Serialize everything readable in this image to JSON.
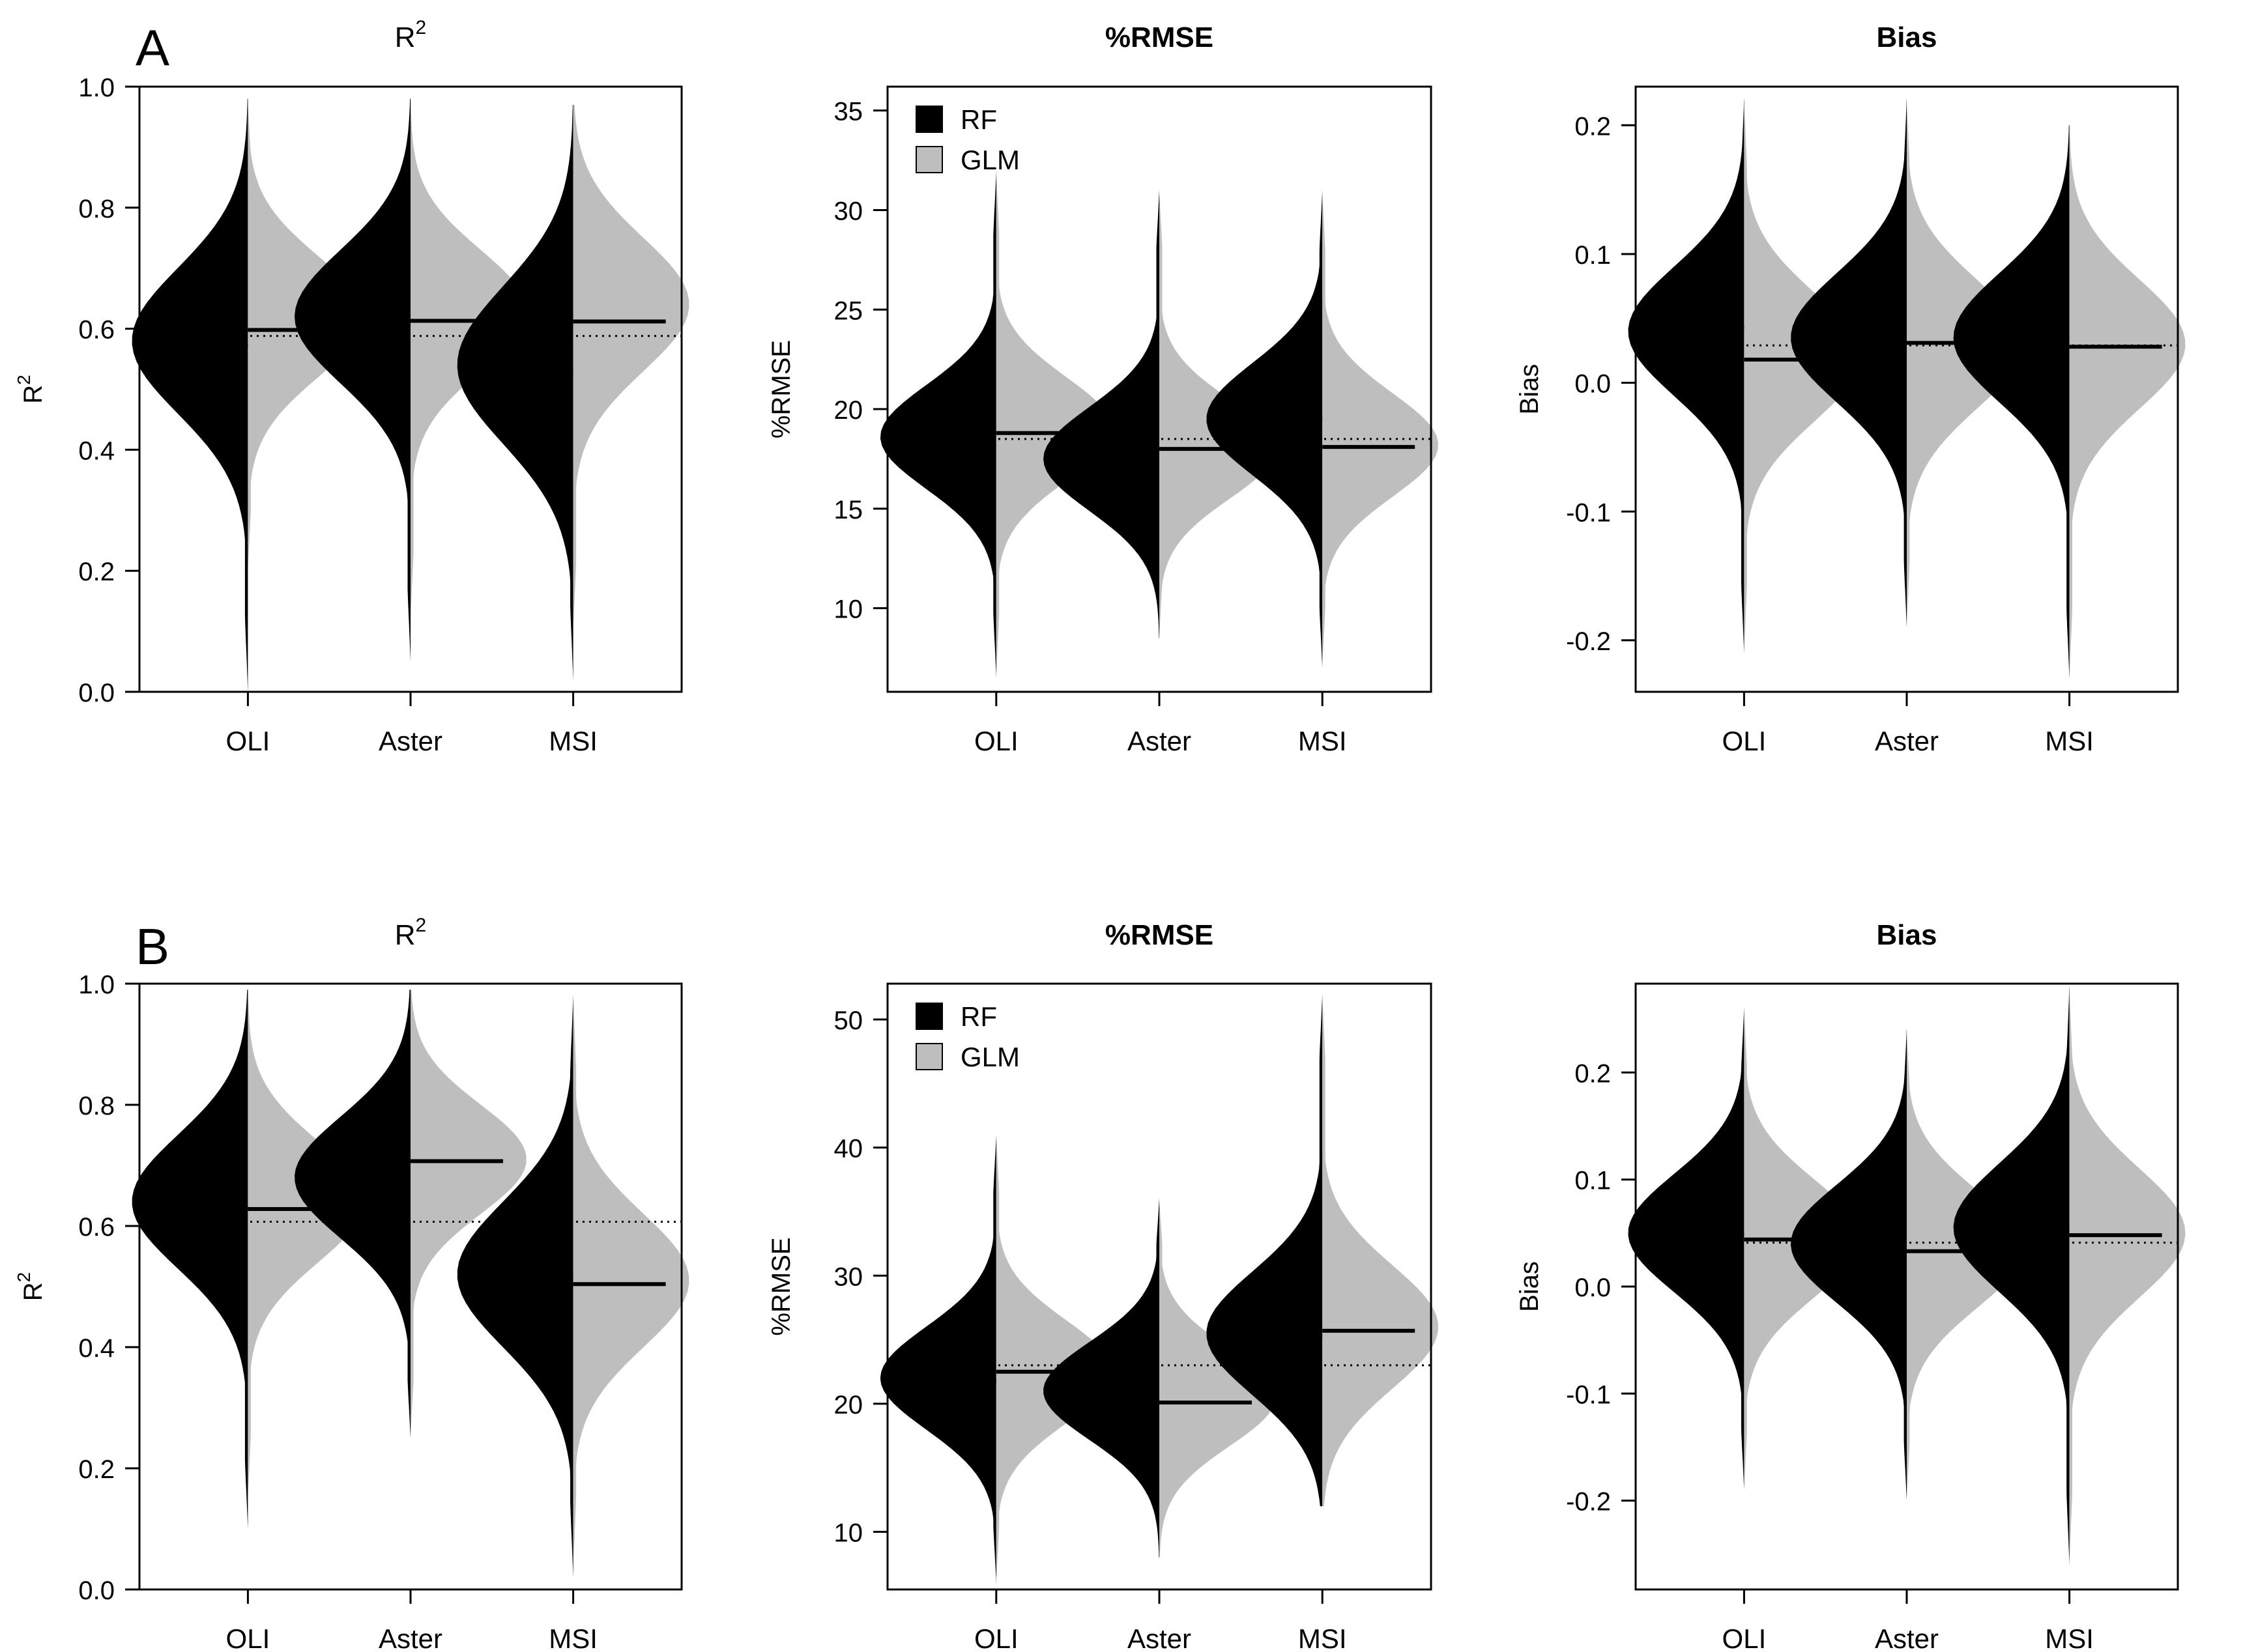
{
  "figure": {
    "rows": [
      {
        "label": "A"
      },
      {
        "label": "B"
      }
    ]
  },
  "legend": {
    "entries": [
      {
        "name": "RF",
        "color": "#000000"
      },
      {
        "name": "GLM",
        "color": "#bebebe"
      }
    ]
  },
  "colors": {
    "rf": "#000000",
    "glm": "#bebebe"
  },
  "chart_data": [
    {
      "type": "violin-split",
      "row": "A",
      "metric": "R2",
      "title": "R",
      "title_superscript": "2",
      "title_bold": false,
      "ylabel": "R",
      "ylabel_superscript": "2",
      "categories": [
        "OLI",
        "Aster",
        "MSI"
      ],
      "ylim": [
        0,
        1
      ],
      "yticks": [
        0.0,
        0.2,
        0.4,
        0.6,
        0.8,
        1.0
      ],
      "tick_decimals": 1,
      "reference_line": 0.588,
      "legend": false,
      "series": [
        {
          "name": "RF",
          "means": [
            0.572,
            0.622,
            0.527
          ],
          "dist": [
            {
              "min": 0.0,
              "max": 0.98,
              "mode": 0.58,
              "sd": 0.12
            },
            {
              "min": 0.05,
              "max": 0.98,
              "mode": 0.62,
              "sd": 0.11
            },
            {
              "min": 0.02,
              "max": 0.97,
              "mode": 0.54,
              "sd": 0.13
            }
          ]
        },
        {
          "name": "GLM",
          "means": [
            0.598,
            0.613,
            0.612
          ],
          "dist": [
            {
              "min": 0.2,
              "max": 0.98,
              "mode": 0.62,
              "sd": 0.1
            },
            {
              "min": 0.12,
              "max": 0.98,
              "mode": 0.63,
              "sd": 0.1
            },
            {
              "min": 0.1,
              "max": 0.97,
              "mode": 0.64,
              "sd": 0.11
            }
          ]
        }
      ]
    },
    {
      "type": "violin-split",
      "row": "A",
      "metric": "%RMSE",
      "title": "%RMSE",
      "title_bold": true,
      "ylabel": "%RMSE",
      "categories": [
        "OLI",
        "Aster",
        "MSI"
      ],
      "ylim": [
        5.8,
        36.2
      ],
      "yticks": [
        10,
        15,
        20,
        25,
        30,
        35
      ],
      "tick_decimals": 0,
      "reference_line": 18.5,
      "legend": true,
      "series": [
        {
          "name": "RF",
          "means": [
            18.8,
            17.4,
            19.5
          ],
          "dist": [
            {
              "min": 6.5,
              "max": 32,
              "mode": 18.6,
              "sd": 2.6
            },
            {
              "min": 8.5,
              "max": 31,
              "mode": 17.5,
              "sd": 2.6
            },
            {
              "min": 7.0,
              "max": 31,
              "mode": 19.5,
              "sd": 2.8
            }
          ]
        },
        {
          "name": "GLM",
          "means": [
            18.8,
            18.0,
            18.1
          ],
          "dist": [
            {
              "min": 6.5,
              "max": 32,
              "mode": 19.0,
              "sd": 2.6
            },
            {
              "min": 8.5,
              "max": 31,
              "mode": 18.0,
              "sd": 2.5
            },
            {
              "min": 7.0,
              "max": 31,
              "mode": 18.2,
              "sd": 2.6
            }
          ]
        }
      ]
    },
    {
      "type": "violin-split",
      "row": "A",
      "metric": "Bias",
      "title": "Bias",
      "title_bold": true,
      "ylabel": "Bias",
      "categories": [
        "OLI",
        "Aster",
        "MSI"
      ],
      "ylim": [
        -0.24,
        0.23
      ],
      "yticks": [
        -0.2,
        -0.1,
        0.0,
        0.1,
        0.2
      ],
      "tick_decimals": 1,
      "reference_line": 0.029,
      "legend": false,
      "series": [
        {
          "name": "RF",
          "means": [
            0.043,
            0.031,
            0.036
          ],
          "dist": [
            {
              "min": -0.21,
              "max": 0.22,
              "mode": 0.04,
              "sd": 0.05
            },
            {
              "min": -0.19,
              "max": 0.22,
              "mode": 0.035,
              "sd": 0.05
            },
            {
              "min": -0.23,
              "max": 0.2,
              "mode": 0.035,
              "sd": 0.05
            }
          ]
        },
        {
          "name": "GLM",
          "means": [
            0.018,
            0.031,
            0.028
          ],
          "dist": [
            {
              "min": -0.21,
              "max": 0.22,
              "mode": 0.02,
              "sd": 0.05
            },
            {
              "min": -0.19,
              "max": 0.22,
              "mode": 0.03,
              "sd": 0.05
            },
            {
              "min": -0.23,
              "max": 0.2,
              "mode": 0.03,
              "sd": 0.05
            }
          ]
        }
      ]
    },
    {
      "type": "violin-split",
      "row": "B",
      "metric": "R2",
      "title": "R",
      "title_superscript": "2",
      "title_bold": false,
      "ylabel": "R",
      "ylabel_superscript": "2",
      "categories": [
        "OLI",
        "Aster",
        "MSI"
      ],
      "ylim": [
        0,
        1
      ],
      "yticks": [
        0.0,
        0.2,
        0.4,
        0.6,
        0.8,
        1.0
      ],
      "tick_decimals": 1,
      "reference_line": 0.607,
      "legend": false,
      "series": [
        {
          "name": "RF",
          "means": [
            0.63,
            0.675,
            0.515
          ],
          "dist": [
            {
              "min": 0.1,
              "max": 0.99,
              "mode": 0.64,
              "sd": 0.11
            },
            {
              "min": 0.25,
              "max": 0.99,
              "mode": 0.68,
              "sd": 0.1
            },
            {
              "min": 0.02,
              "max": 0.98,
              "mode": 0.52,
              "sd": 0.12
            }
          ]
        },
        {
          "name": "GLM",
          "means": [
            0.628,
            0.707,
            0.504
          ],
          "dist": [
            {
              "min": 0.15,
              "max": 0.99,
              "mode": 0.64,
              "sd": 0.1
            },
            {
              "min": 0.25,
              "max": 0.99,
              "mode": 0.71,
              "sd": 0.09
            },
            {
              "min": 0.03,
              "max": 0.98,
              "mode": 0.51,
              "sd": 0.11
            }
          ]
        }
      ]
    },
    {
      "type": "violin-split",
      "row": "B",
      "metric": "%RMSE",
      "title": "%RMSE",
      "title_bold": true,
      "ylabel": "%RMSE",
      "categories": [
        "OLI",
        "Aster",
        "MSI"
      ],
      "ylim": [
        5.5,
        52.8
      ],
      "yticks": [
        10,
        20,
        30,
        40,
        50
      ],
      "tick_decimals": 0,
      "reference_line": 23.0,
      "legend": true,
      "series": [
        {
          "name": "RF",
          "means": [
            21.8,
            21.0,
            25.3
          ],
          "dist": [
            {
              "min": 6,
              "max": 41,
              "mode": 22.0,
              "sd": 4.0
            },
            {
              "min": 8,
              "max": 36,
              "mode": 21.0,
              "sd": 3.8
            },
            {
              "min": 12,
              "max": 52,
              "mode": 25.5,
              "sd": 4.8
            }
          ]
        },
        {
          "name": "GLM",
          "means": [
            22.5,
            20.1,
            25.7
          ],
          "dist": [
            {
              "min": 6,
              "max": 41,
              "mode": 22.5,
              "sd": 4.0
            },
            {
              "min": 8,
              "max": 36,
              "mode": 20.5,
              "sd": 3.8
            },
            {
              "min": 12,
              "max": 52,
              "mode": 26.0,
              "sd": 4.8
            }
          ]
        }
      ]
    },
    {
      "type": "violin-split",
      "row": "B",
      "metric": "Bias",
      "title": "Bias",
      "title_bold": true,
      "ylabel": "Bias",
      "categories": [
        "OLI",
        "Aster",
        "MSI"
      ],
      "ylim": [
        -0.283,
        0.283
      ],
      "yticks": [
        -0.2,
        -0.1,
        0.0,
        0.1,
        0.2
      ],
      "tick_decimals": 1,
      "reference_line": 0.041,
      "legend": false,
      "series": [
        {
          "name": "RF",
          "means": [
            0.049,
            0.038,
            0.054
          ],
          "dist": [
            {
              "min": -0.19,
              "max": 0.26,
              "mode": 0.05,
              "sd": 0.055
            },
            {
              "min": -0.2,
              "max": 0.24,
              "mode": 0.04,
              "sd": 0.055
            },
            {
              "min": -0.26,
              "max": 0.28,
              "mode": 0.055,
              "sd": 0.06
            }
          ]
        },
        {
          "name": "GLM",
          "means": [
            0.044,
            0.033,
            0.048
          ],
          "dist": [
            {
              "min": -0.19,
              "max": 0.26,
              "mode": 0.045,
              "sd": 0.055
            },
            {
              "min": -0.2,
              "max": 0.24,
              "mode": 0.035,
              "sd": 0.055
            },
            {
              "min": -0.26,
              "max": 0.28,
              "mode": 0.05,
              "sd": 0.06
            }
          ]
        }
      ]
    }
  ]
}
